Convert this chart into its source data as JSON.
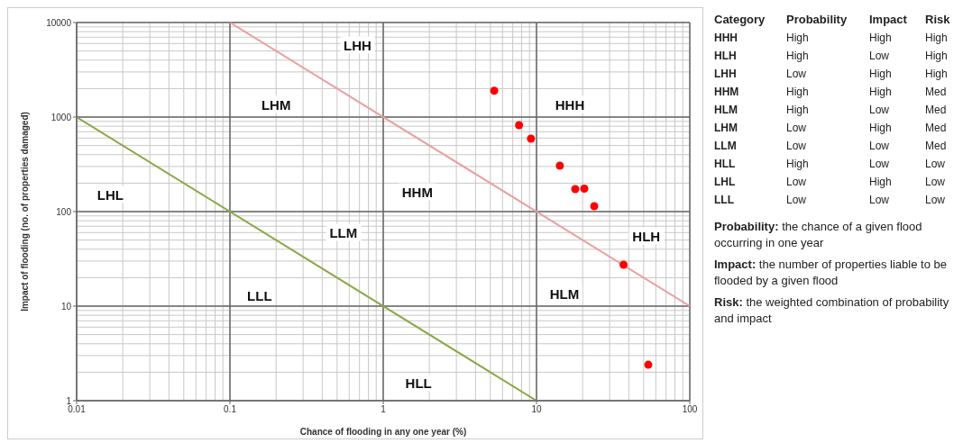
{
  "chart_data": [
    {
      "type": "scatter",
      "xlabel": "Chance of flooding in any one year (%)",
      "ylabel": "Impact of flooding (no. of properties damaged)",
      "log": "xy",
      "grid": true,
      "xlim": [
        0.01,
        100
      ],
      "xticks": [
        0.01,
        0.1,
        1,
        10,
        100
      ],
      "ylim": [
        1,
        10000
      ],
      "yticks": [
        1,
        10,
        100,
        1000,
        10000
      ],
      "series": [
        {
          "type": "line",
          "color": "#e8a0a0",
          "marker": "none",
          "x": [
            0.1,
            100
          ],
          "values": [
            10000,
            10
          ]
        },
        {
          "type": "line",
          "color": "#8aa845",
          "marker": "none",
          "x": [
            0.01,
            10
          ],
          "values": [
            1000,
            1
          ]
        },
        {
          "type": "scatter",
          "color": "#ff0000",
          "marker": "circle",
          "x": [
            5.3,
            7.7,
            9.2,
            14.2,
            17.9,
            20.5,
            23.8,
            37,
            53.6
          ],
          "values": [
            1900,
            820,
            590,
            306,
            173,
            175,
            114,
            27.4,
            2.4
          ]
        }
      ],
      "annotations": [
        {
          "text": "LHH",
          "x": 0.68,
          "y": 5800
        },
        {
          "text": "LHM",
          "x": 0.2,
          "y": 1360
        },
        {
          "text": "HHH",
          "x": 16.5,
          "y": 1360
        },
        {
          "text": "LHL",
          "x": 0.0166,
          "y": 151
        },
        {
          "text": "HHM",
          "x": 1.67,
          "y": 162
        },
        {
          "text": "LLM",
          "x": 0.55,
          "y": 60
        },
        {
          "text": "HLH",
          "x": 52,
          "y": 55
        },
        {
          "text": "LLL",
          "x": 0.156,
          "y": 13
        },
        {
          "text": "HLM",
          "x": 15.2,
          "y": 13.6
        },
        {
          "text": "HLL",
          "x": 1.7,
          "y": 1.55
        }
      ]
    },
    {
      "type": "other",
      "annotations": [
        "Category",
        "Probability",
        "Impact",
        "Risk",
        "HHH",
        "High",
        "High",
        "High",
        "HLH",
        "High",
        "Low",
        "High",
        "LHH",
        "Low",
        "High",
        "High",
        "HHM",
        "High",
        "High",
        "Med",
        "HLM",
        "High",
        "Low",
        "Med",
        "LHM",
        "Low",
        "High",
        "Med",
        "LLM",
        "Low",
        "Low",
        "Med",
        "HLL",
        "High",
        "Low",
        "Low",
        "LHL",
        "Low",
        "High",
        "Low",
        "LLL",
        "Low",
        "Low",
        "Low",
        "Probability: the chance of a given flood occurring in one year",
        "Impact: the number of properties liable to be flooded by a given flood",
        "Risk: the weighted combination of probability and impact"
      ]
    }
  ]
}
